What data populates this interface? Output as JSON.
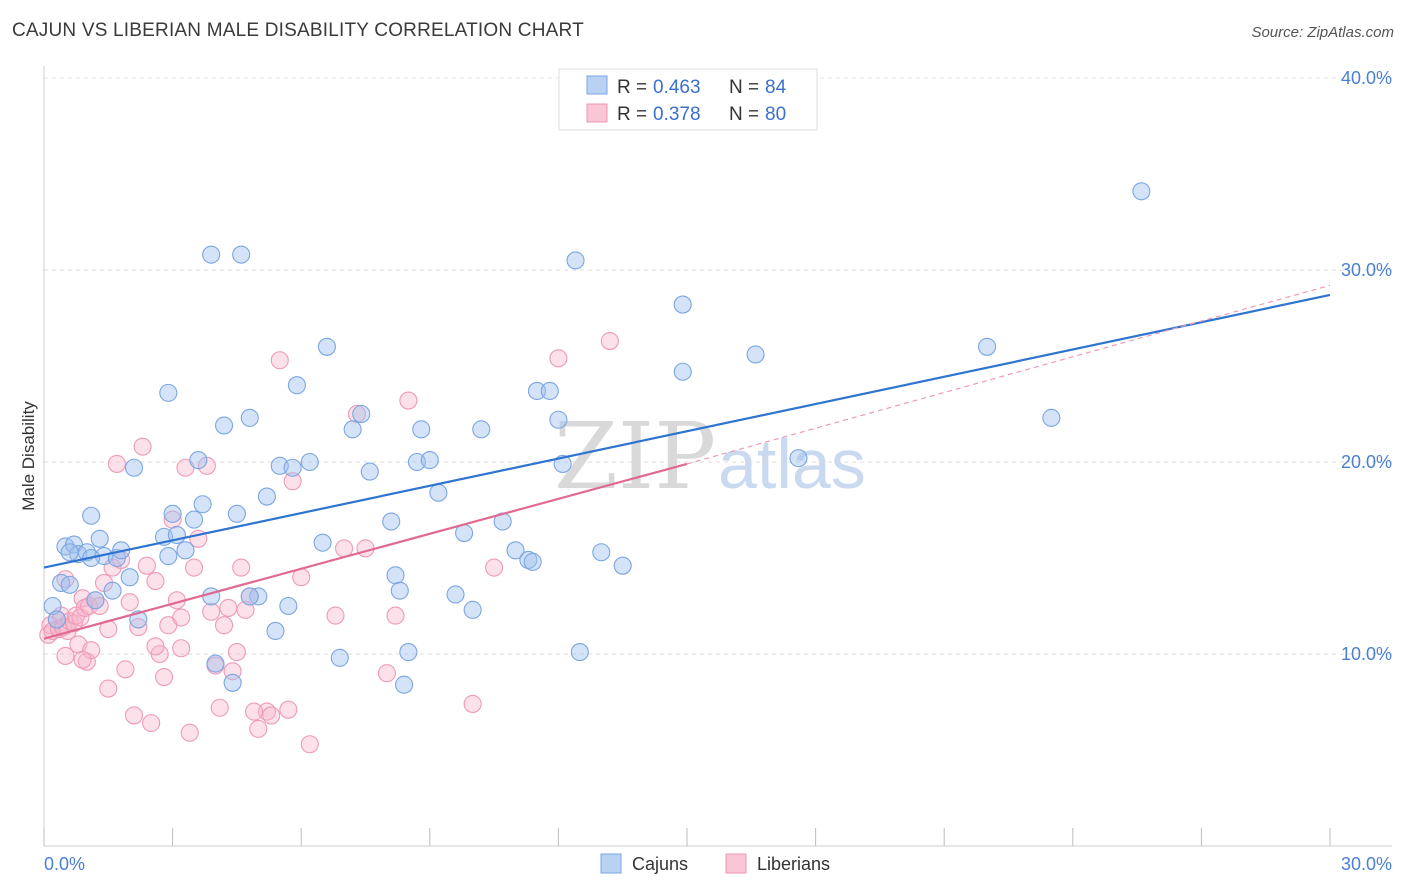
{
  "title": "CAJUN VS LIBERIAN MALE DISABILITY CORRELATION CHART",
  "source": "Source: ZipAtlas.com",
  "colors": {
    "blue": "#6a9fe0",
    "blue_line": "#2f74d0",
    "pink": "#f08aa8",
    "pink_line": "#e06a92",
    "tick": "#4a7fd4"
  },
  "legend": {
    "rows": [
      {
        "r_label": "R =",
        "r_value": "0.463",
        "n_label": "N =",
        "n_value": "84"
      },
      {
        "r_label": "R =",
        "r_value": "0.378",
        "n_label": "N =",
        "n_value": "80"
      }
    ]
  },
  "bottom_legend": {
    "items": [
      "Cajuns",
      "Liberians"
    ]
  },
  "watermark": {
    "zip": "ZIP",
    "atlas": "atlas"
  },
  "chart_data": {
    "type": "scatter",
    "title": "CAJUN VS LIBERIAN MALE DISABILITY CORRELATION CHART",
    "xlabel": "",
    "ylabel": "Male Disability",
    "xlim": [
      0,
      30
    ],
    "ylim": [
      0,
      40
    ],
    "x_tick_labels": [
      "0.0%",
      "30.0%"
    ],
    "y_ticks": [
      10,
      20,
      30,
      40
    ],
    "y_tick_labels": [
      "10.0%",
      "20.0%",
      "30.0%",
      "40.0%"
    ],
    "series": [
      {
        "name": "Cajuns",
        "color": "blue",
        "r": 0.463,
        "n": 84,
        "trend": {
          "x0": 0,
          "y0": 14.5,
          "x1": 30,
          "y1": 28.7
        },
        "points": [
          [
            0.2,
            12.5
          ],
          [
            0.3,
            11.8
          ],
          [
            0.4,
            13.7
          ],
          [
            0.5,
            15.6
          ],
          [
            0.6,
            13.6
          ],
          [
            0.7,
            15.7
          ],
          [
            0.8,
            15.2
          ],
          [
            1.0,
            15.3
          ],
          [
            1.1,
            17.2
          ],
          [
            1.2,
            12.8
          ],
          [
            1.3,
            16.0
          ],
          [
            1.4,
            15.1
          ],
          [
            1.6,
            13.3
          ],
          [
            1.7,
            15.0
          ],
          [
            1.8,
            15.4
          ],
          [
            2.0,
            14.0
          ],
          [
            2.1,
            19.7
          ],
          [
            2.2,
            11.8
          ],
          [
            2.8,
            16.1
          ],
          [
            2.9,
            15.1
          ],
          [
            3.0,
            17.3
          ],
          [
            2.9,
            23.6
          ],
          [
            3.3,
            15.4
          ],
          [
            3.5,
            17.0
          ],
          [
            3.6,
            20.1
          ],
          [
            3.7,
            17.8
          ],
          [
            3.9,
            13.0
          ],
          [
            4.0,
            9.5
          ],
          [
            4.2,
            21.9
          ],
          [
            4.4,
            8.5
          ],
          [
            4.5,
            17.3
          ],
          [
            4.8,
            22.3
          ],
          [
            5.0,
            13.0
          ],
          [
            5.2,
            18.2
          ],
          [
            5.4,
            11.2
          ],
          [
            5.5,
            19.8
          ],
          [
            5.7,
            12.5
          ],
          [
            5.8,
            19.7
          ],
          [
            5.9,
            24.0
          ],
          [
            6.2,
            20.0
          ],
          [
            6.5,
            15.8
          ],
          [
            6.6,
            26.0
          ],
          [
            6.9,
            9.8
          ],
          [
            7.2,
            21.7
          ],
          [
            7.4,
            22.5
          ],
          [
            7.6,
            19.5
          ],
          [
            8.1,
            16.9
          ],
          [
            8.2,
            14.1
          ],
          [
            8.3,
            13.3
          ],
          [
            8.5,
            10.1
          ],
          [
            8.7,
            20.0
          ],
          [
            8.8,
            21.7
          ],
          [
            9.0,
            20.1
          ],
          [
            9.2,
            18.4
          ],
          [
            9.6,
            13.1
          ],
          [
            9.8,
            16.3
          ],
          [
            10.0,
            12.3
          ],
          [
            10.2,
            21.7
          ],
          [
            10.7,
            16.9
          ],
          [
            11.0,
            15.4
          ],
          [
            11.3,
            14.9
          ],
          [
            11.5,
            23.7
          ],
          [
            11.8,
            23.7
          ],
          [
            12.0,
            22.2
          ],
          [
            12.1,
            19.9
          ],
          [
            12.4,
            30.5
          ],
          [
            12.5,
            10.1
          ],
          [
            13.0,
            15.3
          ],
          [
            13.5,
            14.6
          ],
          [
            14.9,
            28.2
          ],
          [
            14.9,
            24.7
          ],
          [
            16.6,
            25.6
          ],
          [
            17.6,
            20.2
          ],
          [
            22.0,
            26.0
          ],
          [
            23.5,
            22.3
          ],
          [
            25.6,
            34.1
          ],
          [
            3.9,
            30.8
          ],
          [
            4.6,
            30.8
          ],
          [
            8.4,
            8.4
          ],
          [
            1.1,
            15.0
          ],
          [
            0.6,
            15.3
          ],
          [
            3.1,
            16.2
          ],
          [
            4.8,
            13.0
          ],
          [
            11.4,
            14.8
          ]
        ]
      },
      {
        "name": "Liberians",
        "color": "pink",
        "r": 0.378,
        "n": 80,
        "trend": {
          "x0": 0,
          "y0": 10.8,
          "x1": 15.0,
          "y1": 19.9
        },
        "trend_dashed": {
          "x0": 15.0,
          "y0": 19.9,
          "x1": 30,
          "y1": 29.2
        },
        "points": [
          [
            0.1,
            11.0
          ],
          [
            0.15,
            11.5
          ],
          [
            0.2,
            11.2
          ],
          [
            0.3,
            11.8
          ],
          [
            0.35,
            11.3
          ],
          [
            0.4,
            12.0
          ],
          [
            0.45,
            11.4
          ],
          [
            0.5,
            13.9
          ],
          [
            0.55,
            11.2
          ],
          [
            0.6,
            11.7
          ],
          [
            0.7,
            11.6
          ],
          [
            0.75,
            12.0
          ],
          [
            0.8,
            10.5
          ],
          [
            0.85,
            11.9
          ],
          [
            0.9,
            12.9
          ],
          [
            0.95,
            12.4
          ],
          [
            1.0,
            9.6
          ],
          [
            1.05,
            12.5
          ],
          [
            1.1,
            10.2
          ],
          [
            1.2,
            12.8
          ],
          [
            1.3,
            12.5
          ],
          [
            1.4,
            13.7
          ],
          [
            1.5,
            8.2
          ],
          [
            1.6,
            14.5
          ],
          [
            1.7,
            19.9
          ],
          [
            1.8,
            14.9
          ],
          [
            1.9,
            9.2
          ],
          [
            2.0,
            12.7
          ],
          [
            2.1,
            6.8
          ],
          [
            2.2,
            11.4
          ],
          [
            2.3,
            20.8
          ],
          [
            2.4,
            14.6
          ],
          [
            2.5,
            6.4
          ],
          [
            2.6,
            13.8
          ],
          [
            2.7,
            10.0
          ],
          [
            2.8,
            8.8
          ],
          [
            2.9,
            11.5
          ],
          [
            3.0,
            17.0
          ],
          [
            3.1,
            12.8
          ],
          [
            3.2,
            11.9
          ],
          [
            3.3,
            19.7
          ],
          [
            3.4,
            5.9
          ],
          [
            3.5,
            14.5
          ],
          [
            3.6,
            16.0
          ],
          [
            3.8,
            19.8
          ],
          [
            4.0,
            9.4
          ],
          [
            4.1,
            7.2
          ],
          [
            4.2,
            11.5
          ],
          [
            4.3,
            12.4
          ],
          [
            4.4,
            9.1
          ],
          [
            4.5,
            10.1
          ],
          [
            4.6,
            14.5
          ],
          [
            4.7,
            12.3
          ],
          [
            4.8,
            13.0
          ],
          [
            5.0,
            6.1
          ],
          [
            5.2,
            7.0
          ],
          [
            5.3,
            6.8
          ],
          [
            5.5,
            25.3
          ],
          [
            5.8,
            19.0
          ],
          [
            6.0,
            14.0
          ],
          [
            6.2,
            5.3
          ],
          [
            7.0,
            15.5
          ],
          [
            7.3,
            22.5
          ],
          [
            7.5,
            15.5
          ],
          [
            8.0,
            9.0
          ],
          [
            8.2,
            12.0
          ],
          [
            8.5,
            23.2
          ],
          [
            10.0,
            7.4
          ],
          [
            10.5,
            14.5
          ],
          [
            12.0,
            25.4
          ],
          [
            13.2,
            26.3
          ],
          [
            0.5,
            9.9
          ],
          [
            0.9,
            9.7
          ],
          [
            1.5,
            11.3
          ],
          [
            2.6,
            10.4
          ],
          [
            3.2,
            10.3
          ],
          [
            3.9,
            12.2
          ],
          [
            4.9,
            7.0
          ],
          [
            5.7,
            7.1
          ],
          [
            6.8,
            12.0
          ]
        ]
      }
    ]
  }
}
